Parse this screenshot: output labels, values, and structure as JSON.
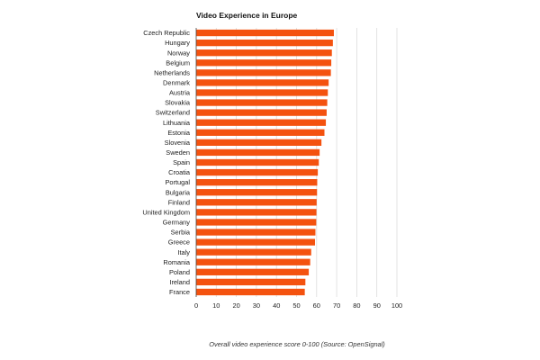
{
  "chart_data": {
    "type": "bar",
    "orientation": "horizontal",
    "title": "Video Experience in Europe",
    "caption": "Overall video experience score 0-100 (Source: OpenSignal)",
    "categories": [
      "Czech Republic",
      "Hungary",
      "Norway",
      "Belgium",
      "Netherlands",
      "Denmark",
      "Austria",
      "Slovakia",
      "Switzerland",
      "Lithuania",
      "Estonia",
      "Slovenia",
      "Sweden",
      "Spain",
      "Croatia",
      "Portugal",
      "Bulgaria",
      "Finland",
      "United Kingdom",
      "Germany",
      "Serbia",
      "Greece",
      "Italy",
      "Romania",
      "Poland",
      "Ireland",
      "France"
    ],
    "values": [
      68.6,
      68.1,
      67.6,
      67.3,
      67.1,
      66.0,
      65.6,
      65.3,
      65.0,
      64.6,
      63.9,
      62.4,
      61.5,
      61.1,
      60.6,
      60.3,
      60.2,
      60.0,
      59.9,
      59.8,
      59.4,
      59.2,
      57.3,
      56.8,
      56.1,
      54.4,
      54.1
    ],
    "xlim": [
      0,
      100
    ],
    "xticks": [
      "0",
      "10",
      "20",
      "30",
      "40",
      "50",
      "60",
      "70",
      "80",
      "90",
      "100"
    ],
    "grid": true,
    "bar_color": "#f4520f"
  }
}
